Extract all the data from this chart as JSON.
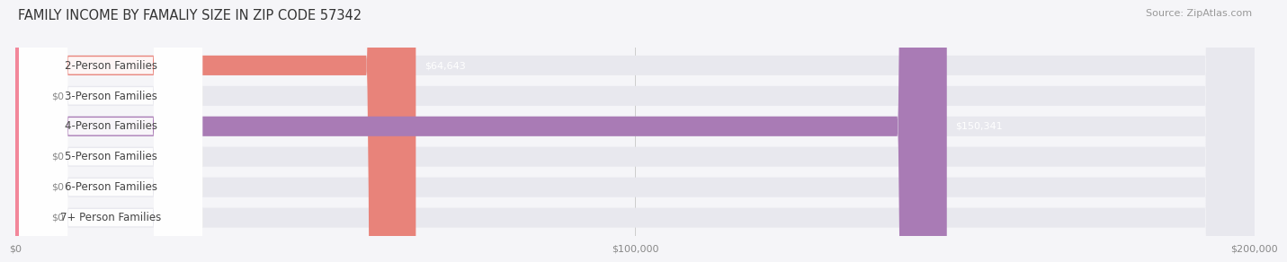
{
  "title": "FAMILY INCOME BY FAMALIY SIZE IN ZIP CODE 57342",
  "source": "Source: ZipAtlas.com",
  "categories": [
    "2-Person Families",
    "3-Person Families",
    "4-Person Families",
    "5-Person Families",
    "6-Person Families",
    "7+ Person Families"
  ],
  "values": [
    64643,
    0,
    150341,
    0,
    0,
    0
  ],
  "bar_colors": [
    "#E8837A",
    "#9BB8D4",
    "#A97BB5",
    "#6DC5C1",
    "#A9AEDE",
    "#F2879A"
  ],
  "value_labels": [
    "$64,643",
    "$0",
    "$150,341",
    "$0",
    "$0",
    "$0"
  ],
  "xlim": [
    0,
    200000
  ],
  "xticks": [
    0,
    100000,
    200000
  ],
  "xtick_labels": [
    "$0",
    "$100,000",
    "$200,000"
  ],
  "background_color": "#F5F5F8",
  "bar_bg_color": "#E8E8EE",
  "title_fontsize": 10.5,
  "source_fontsize": 8,
  "label_fontsize": 8.5,
  "value_fontsize": 8,
  "fig_width": 14.06,
  "fig_height": 3.05
}
